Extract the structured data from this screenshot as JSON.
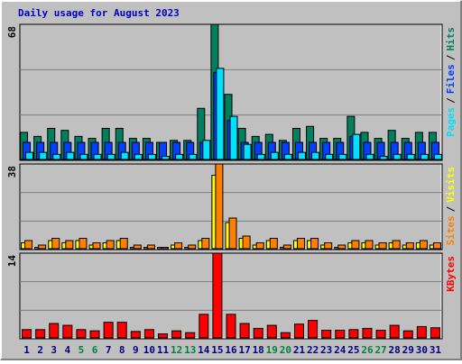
{
  "title": "Daily usage for August 2023",
  "legend_separator": "/",
  "chart_data": [
    {
      "type": "bar",
      "ylim": [
        0,
        68
      ],
      "yticks": [
        68
      ],
      "grid_divisions": 3,
      "series": [
        {
          "name": "Hits",
          "color": "#00805c",
          "values": [
            14,
            12,
            16,
            15,
            12,
            11,
            16,
            16,
            11,
            11,
            9,
            10,
            10,
            26,
            68,
            33,
            16,
            12,
            13,
            10,
            16,
            17,
            11,
            11,
            22,
            14,
            11,
            15,
            11,
            14,
            14
          ]
        },
        {
          "name": "Files",
          "color": "#0040ff",
          "values": [
            9,
            9,
            9,
            9,
            9,
            9,
            9,
            9,
            9,
            9,
            9,
            9,
            9,
            9,
            44,
            20,
            9,
            9,
            9,
            9,
            9,
            9,
            9,
            9,
            12,
            9,
            9,
            9,
            9,
            9,
            9
          ]
        },
        {
          "name": "Pages",
          "color": "#00e0ff",
          "values": [
            4,
            4,
            3,
            4,
            3,
            3,
            3,
            4,
            3,
            3,
            2,
            3,
            3,
            10,
            46,
            22,
            8,
            3,
            4,
            3,
            4,
            4,
            3,
            3,
            13,
            3,
            2,
            3,
            3,
            3,
            3
          ]
        }
      ]
    },
    {
      "type": "bar",
      "ylim": [
        0,
        38
      ],
      "yticks": [
        38
      ],
      "grid_divisions": 3,
      "series": [
        {
          "name": "Visits",
          "color": "#ffff00",
          "values": [
            3,
            1,
            4,
            3,
            4,
            2,
            3,
            4,
            1,
            1,
            1,
            2,
            1,
            4,
            33,
            12,
            5,
            2,
            4,
            1,
            4,
            4,
            2,
            1,
            3,
            3,
            2,
            3,
            2,
            3,
            2
          ]
        },
        {
          "name": "Sites",
          "color": "#ff8000",
          "values": [
            4,
            2,
            5,
            4,
            5,
            3,
            4,
            5,
            2,
            2,
            1,
            3,
            2,
            5,
            38,
            14,
            6,
            3,
            5,
            2,
            5,
            5,
            3,
            2,
            4,
            4,
            3,
            4,
            3,
            4,
            3
          ]
        }
      ]
    },
    {
      "type": "bar",
      "ylim": [
        0,
        14
      ],
      "yticks": [
        14
      ],
      "grid_divisions": 3,
      "categories": [
        "1",
        "2",
        "3",
        "4",
        "5",
        "6",
        "7",
        "8",
        "9",
        "10",
        "11",
        "12",
        "13",
        "14",
        "15",
        "16",
        "17",
        "18",
        "19",
        "20",
        "21",
        "22",
        "23",
        "24",
        "25",
        "26",
        "27",
        "28",
        "29",
        "30",
        "31"
      ],
      "category_colors": [
        "#000080",
        "#000080",
        "#000080",
        "#000080",
        "#008040",
        "#008040",
        "#000080",
        "#000080",
        "#000080",
        "#000080",
        "#000080",
        "#008040",
        "#008040",
        "#000080",
        "#000080",
        "#000080",
        "#000080",
        "#000080",
        "#008040",
        "#008040",
        "#000080",
        "#000080",
        "#000080",
        "#000080",
        "#000080",
        "#008040",
        "#008040",
        "#000080",
        "#000080",
        "#000080",
        "#000080"
      ],
      "series": [
        {
          "name": "KBytes",
          "color": "#ff0000",
          "values": [
            1.5,
            1.5,
            2.5,
            2.2,
            1.5,
            1.3,
            2.7,
            2.7,
            1.2,
            1.5,
            0.8,
            1.3,
            1.0,
            4,
            14,
            4,
            2.5,
            1.7,
            2.2,
            1.0,
            2.4,
            3.0,
            1.4,
            1.4,
            1.5,
            1.7,
            1.4,
            2.2,
            1.3,
            2.0,
            1.8
          ]
        }
      ]
    }
  ]
}
